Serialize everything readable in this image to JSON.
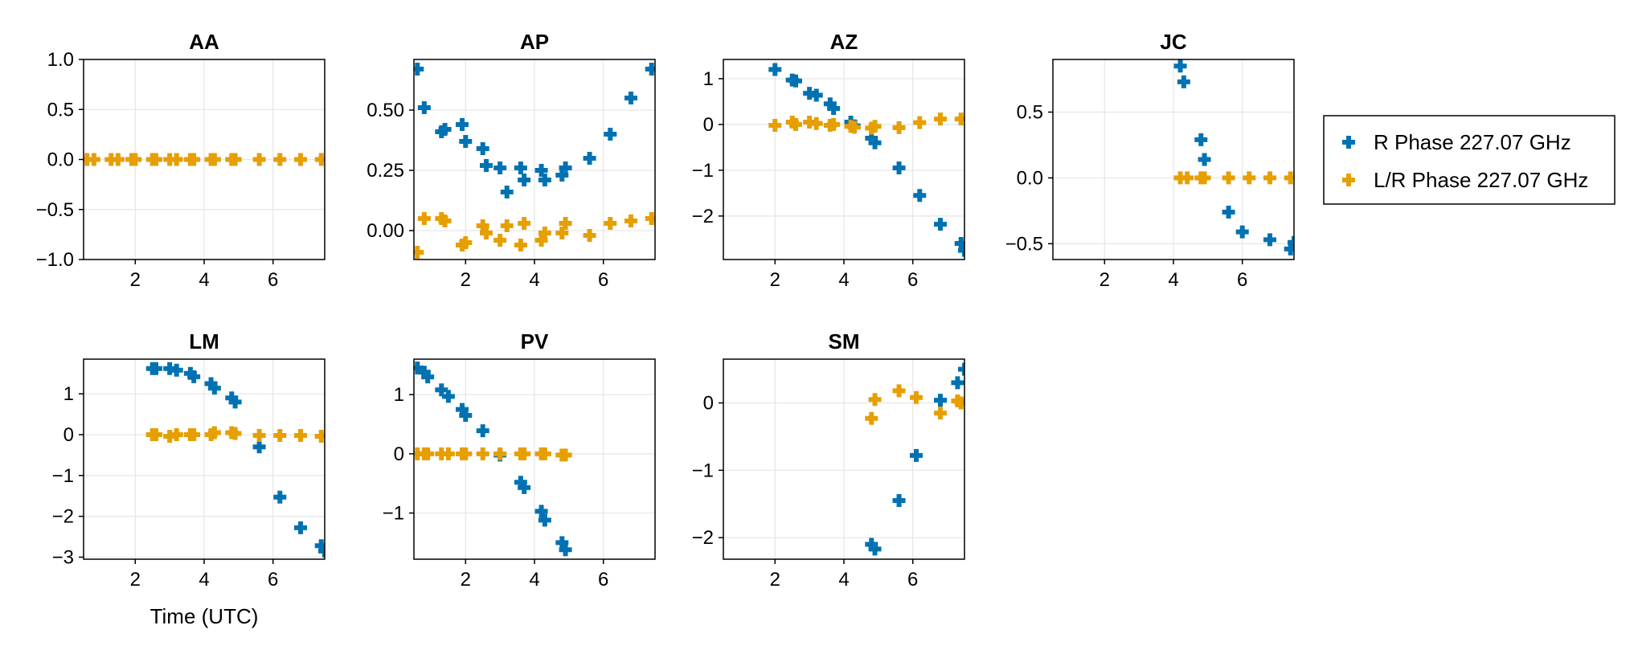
{
  "chart_data": [
    {
      "type": "scatter",
      "title": "AA",
      "xlabel": "",
      "xlim": [
        0.5,
        7.5
      ],
      "ylim": [
        -1.0,
        1.0
      ],
      "xticks": [
        2,
        4,
        6
      ],
      "yticks": [
        -1.0,
        -0.5,
        0.0,
        0.5,
        1.0
      ],
      "ytick_labels": [
        "−1.0",
        "−0.5",
        "0.0",
        "0.5",
        "1.0"
      ],
      "series": [
        {
          "x": [],
          "y": []
        },
        {
          "x": [
            0.6,
            0.8,
            1.3,
            1.5,
            1.9,
            2.0,
            2.5,
            2.6,
            3.0,
            3.2,
            3.6,
            3.7,
            4.2,
            4.3,
            4.8,
            4.9,
            5.6,
            6.2,
            6.8,
            7.4
          ],
          "y": [
            0,
            0,
            0,
            0,
            0,
            0,
            0,
            0,
            0,
            0,
            0,
            0,
            0,
            0,
            0,
            0,
            0,
            0,
            0,
            0
          ]
        }
      ]
    },
    {
      "type": "scatter",
      "title": "AP",
      "xlabel": "",
      "xlim": [
        0.5,
        7.5
      ],
      "ylim": [
        -0.12,
        0.71
      ],
      "xticks": [
        2,
        4,
        6
      ],
      "yticks": [
        0.0,
        0.25,
        0.5
      ],
      "ytick_labels": [
        "0.00",
        "0.25",
        "0.50"
      ],
      "series": [
        {
          "x": [
            0.6,
            0.8,
            1.3,
            1.4,
            1.9,
            2.0,
            2.5,
            2.6,
            3.0,
            3.2,
            3.6,
            3.7,
            4.2,
            4.3,
            4.8,
            4.9,
            5.6,
            6.2,
            6.8,
            7.4
          ],
          "y": [
            0.67,
            0.51,
            0.41,
            0.42,
            0.44,
            0.37,
            0.34,
            0.27,
            0.26,
            0.16,
            0.26,
            0.21,
            0.25,
            0.21,
            0.23,
            0.26,
            0.3,
            0.4,
            0.55,
            0.67
          ]
        },
        {
          "x": [
            0.6,
            0.8,
            1.3,
            1.4,
            1.9,
            2.0,
            2.5,
            2.6,
            3.0,
            3.2,
            3.6,
            3.7,
            4.2,
            4.3,
            4.8,
            4.9,
            5.6,
            6.2,
            6.8,
            7.4
          ],
          "y": [
            -0.09,
            0.05,
            0.05,
            0.04,
            -0.06,
            -0.05,
            0.02,
            -0.01,
            -0.04,
            0.02,
            -0.06,
            0.03,
            -0.04,
            -0.01,
            -0.01,
            0.03,
            -0.02,
            0.03,
            0.04,
            0.05
          ]
        }
      ]
    },
    {
      "type": "scatter",
      "title": "AZ",
      "xlabel": "",
      "xlim": [
        0.5,
        7.5
      ],
      "ylim": [
        -2.95,
        1.42
      ],
      "xticks": [
        2,
        4,
        6
      ],
      "yticks": [
        -2,
        -1,
        0,
        1
      ],
      "ytick_labels": [
        "−2",
        "−1",
        "0",
        "1"
      ],
      "series": [
        {
          "x": [
            2.0,
            2.5,
            2.6,
            3.0,
            3.2,
            3.6,
            3.7,
            4.2,
            4.3,
            4.8,
            4.9,
            5.6,
            6.2,
            6.8,
            7.4,
            7.5
          ],
          "y": [
            1.2,
            0.97,
            0.95,
            0.68,
            0.64,
            0.45,
            0.35,
            0.05,
            -0.03,
            -0.3,
            -0.4,
            -0.95,
            -1.55,
            -2.18,
            -2.6,
            -2.75
          ]
        },
        {
          "x": [
            2.0,
            2.5,
            2.6,
            3.0,
            3.2,
            3.6,
            3.7,
            4.2,
            4.3,
            4.8,
            4.9,
            5.6,
            6.2,
            6.8,
            7.4
          ],
          "y": [
            -0.02,
            0.05,
            0.0,
            0.05,
            0.02,
            -0.02,
            0.0,
            -0.04,
            -0.06,
            -0.08,
            -0.04,
            -0.07,
            0.04,
            0.12,
            0.12
          ]
        }
      ]
    },
    {
      "type": "scatter",
      "title": "JC",
      "xlabel": "",
      "xlim": [
        0.5,
        7.5
      ],
      "ylim": [
        -0.62,
        0.9
      ],
      "xticks": [
        2,
        4,
        6
      ],
      "yticks": [
        -0.5,
        0.0,
        0.5
      ],
      "ytick_labels": [
        "−0.5",
        "0.0",
        "0.5"
      ],
      "series": [
        {
          "x": [
            4.2,
            4.3,
            4.8,
            4.9,
            5.6,
            6.0,
            6.8,
            7.4,
            7.5
          ],
          "y": [
            0.85,
            0.73,
            0.29,
            0.14,
            -0.26,
            -0.41,
            -0.47,
            -0.54,
            -0.49
          ]
        },
        {
          "x": [
            4.2,
            4.4,
            4.8,
            4.9,
            5.6,
            6.2,
            6.8,
            7.4
          ],
          "y": [
            0,
            0,
            0,
            0,
            0,
            0,
            0,
            0
          ]
        }
      ]
    },
    {
      "type": "scatter",
      "title": "LM",
      "xlabel": "Time (UTC)",
      "xlim": [
        0.5,
        7.5
      ],
      "ylim": [
        -3.05,
        1.85
      ],
      "xticks": [
        2,
        4,
        6
      ],
      "yticks": [
        -3,
        -2,
        -1,
        0,
        1
      ],
      "ytick_labels": [
        "−3",
        "−2",
        "−1",
        "0",
        "1"
      ],
      "series": [
        {
          "x": [
            2.5,
            2.6,
            3.0,
            3.2,
            3.6,
            3.7,
            4.2,
            4.3,
            4.8,
            4.9,
            5.6,
            6.2,
            6.8,
            7.4,
            7.5
          ],
          "y": [
            1.62,
            1.62,
            1.62,
            1.58,
            1.5,
            1.42,
            1.25,
            1.14,
            0.9,
            0.8,
            -0.3,
            -1.53,
            -2.28,
            -2.72,
            -2.85
          ]
        },
        {
          "x": [
            2.5,
            2.6,
            3.0,
            3.2,
            3.6,
            3.7,
            4.2,
            4.3,
            4.8,
            4.9,
            5.6,
            6.2,
            6.8,
            7.4
          ],
          "y": [
            0,
            0,
            -0.04,
            0,
            0,
            0,
            0,
            0.05,
            0.05,
            0.03,
            -0.02,
            -0.02,
            -0.02,
            -0.04
          ]
        }
      ]
    },
    {
      "type": "scatter",
      "title": "PV",
      "xlabel": "",
      "xlim": [
        0.5,
        7.5
      ],
      "ylim": [
        -1.78,
        1.6
      ],
      "xticks": [
        2,
        4,
        6
      ],
      "yticks": [
        -1,
        0,
        1
      ],
      "ytick_labels": [
        "−1",
        "0",
        "1"
      ],
      "series": [
        {
          "x": [
            0.6,
            0.8,
            0.9,
            1.3,
            1.5,
            1.9,
            2.0,
            2.5,
            3.0,
            3.6,
            3.7,
            4.2,
            4.3,
            4.8,
            4.9
          ],
          "y": [
            1.45,
            1.38,
            1.3,
            1.08,
            0.97,
            0.75,
            0.65,
            0.39,
            -0.02,
            -0.48,
            -0.57,
            -0.97,
            -1.12,
            -1.5,
            -1.62
          ]
        },
        {
          "x": [
            0.6,
            0.8,
            0.9,
            1.3,
            1.5,
            1.9,
            2.0,
            2.5,
            3.0,
            3.6,
            3.7,
            4.2,
            4.3,
            4.8,
            4.9
          ],
          "y": [
            0,
            0,
            0,
            0,
            0,
            0,
            0,
            0,
            0,
            0,
            0,
            0,
            0,
            -0.02,
            -0.02
          ]
        }
      ]
    },
    {
      "type": "scatter",
      "title": "SM",
      "xlabel": "",
      "xlim": [
        0.5,
        7.5
      ],
      "ylim": [
        -2.32,
        0.65
      ],
      "xticks": [
        2,
        4,
        6
      ],
      "yticks": [
        -2,
        -1,
        0
      ],
      "ytick_labels": [
        "−2",
        "−1",
        "0"
      ],
      "series": [
        {
          "x": [
            4.8,
            4.9,
            5.6,
            6.1,
            6.8,
            7.3,
            7.5
          ],
          "y": [
            -2.1,
            -2.17,
            -1.45,
            -0.78,
            0.04,
            0.3,
            0.5
          ]
        },
        {
          "x": [
            4.8,
            4.9,
            5.6,
            6.1,
            6.8,
            7.3,
            7.4
          ],
          "y": [
            -0.23,
            0.05,
            0.18,
            0.08,
            -0.15,
            0.03,
            0.0
          ]
        }
      ]
    }
  ],
  "legend": {
    "placement": "right",
    "entries": [
      "R Phase 227.07 GHz",
      "L/R Phase 227.07 GHz"
    ]
  },
  "colors": {
    "series_1": "#0072b2",
    "series_2": "#e69f00",
    "grid": "#e6e6e6",
    "axis": "#000000"
  }
}
